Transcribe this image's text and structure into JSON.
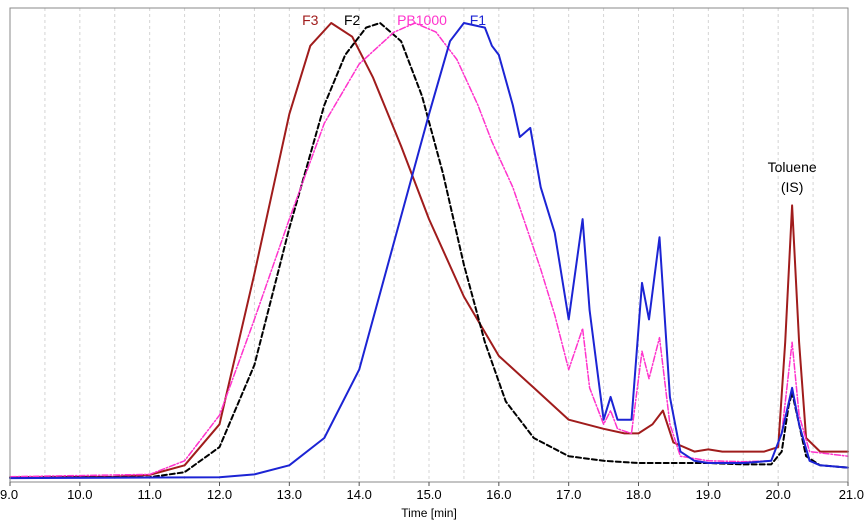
{
  "chart_data": {
    "type": "line",
    "xlabel": "Time [min]",
    "ylabel": "",
    "xlim": [
      9.0,
      21.0
    ],
    "ylim": [
      0,
      100
    ],
    "x_ticks": [
      "9.0",
      "10.0",
      "11.0",
      "12.0",
      "13.0",
      "14.0",
      "15.0",
      "16.0",
      "17.0",
      "18.0",
      "19.0",
      "20.0",
      "21.0"
    ],
    "grid": "vertical dashed minor lines every 0.5 min",
    "series": [
      {
        "name": "F3",
        "color": "#a01c1c",
        "style": "solid",
        "points": [
          [
            9.0,
            0.4
          ],
          [
            10.5,
            0.5
          ],
          [
            11.0,
            0.9
          ],
          [
            11.5,
            3
          ],
          [
            12.0,
            12
          ],
          [
            12.5,
            45
          ],
          [
            13.0,
            80
          ],
          [
            13.3,
            95
          ],
          [
            13.6,
            100
          ],
          [
            13.9,
            97
          ],
          [
            14.2,
            88
          ],
          [
            14.6,
            73
          ],
          [
            15.0,
            57
          ],
          [
            15.5,
            40
          ],
          [
            16.0,
            27
          ],
          [
            16.5,
            20
          ],
          [
            17.0,
            13
          ],
          [
            17.5,
            11
          ],
          [
            17.8,
            10
          ],
          [
            18.0,
            10
          ],
          [
            18.2,
            12
          ],
          [
            18.35,
            15
          ],
          [
            18.5,
            8
          ],
          [
            18.8,
            6
          ],
          [
            19.0,
            6.5
          ],
          [
            19.2,
            6
          ],
          [
            19.8,
            6
          ],
          [
            20.0,
            7
          ],
          [
            20.1,
            30
          ],
          [
            20.2,
            60
          ],
          [
            20.3,
            30
          ],
          [
            20.4,
            9
          ],
          [
            20.6,
            6
          ],
          [
            21.0,
            6
          ]
        ]
      },
      {
        "name": "F2",
        "color": "#000000",
        "style": "dashed",
        "points": [
          [
            9.0,
            0.3
          ],
          [
            11.0,
            0.4
          ],
          [
            11.5,
            1.5
          ],
          [
            12.0,
            7
          ],
          [
            12.5,
            25
          ],
          [
            13.0,
            55
          ],
          [
            13.5,
            82
          ],
          [
            13.8,
            93
          ],
          [
            14.1,
            99
          ],
          [
            14.3,
            100
          ],
          [
            14.6,
            96
          ],
          [
            14.9,
            84
          ],
          [
            15.2,
            67
          ],
          [
            15.5,
            47
          ],
          [
            15.8,
            30
          ],
          [
            16.1,
            17
          ],
          [
            16.5,
            9
          ],
          [
            17.0,
            5
          ],
          [
            17.5,
            4
          ],
          [
            18.0,
            3.5
          ],
          [
            19.0,
            3.5
          ],
          [
            19.5,
            3.2
          ],
          [
            19.9,
            3.2
          ],
          [
            20.05,
            6
          ],
          [
            20.15,
            16
          ],
          [
            20.2,
            19
          ],
          [
            20.3,
            12
          ],
          [
            20.4,
            5
          ],
          [
            20.6,
            3
          ],
          [
            21.0,
            2.5
          ]
        ]
      },
      {
        "name": "PB1000",
        "color": "#ff33cc",
        "style": "dashdot",
        "points": [
          [
            9.0,
            0.5
          ],
          [
            11.0,
            1
          ],
          [
            11.5,
            4
          ],
          [
            12.0,
            14
          ],
          [
            12.5,
            35
          ],
          [
            13.0,
            57
          ],
          [
            13.5,
            78
          ],
          [
            14.0,
            91
          ],
          [
            14.5,
            98
          ],
          [
            14.8,
            100
          ],
          [
            15.1,
            98
          ],
          [
            15.4,
            92
          ],
          [
            15.7,
            82
          ],
          [
            15.9,
            74
          ],
          [
            16.2,
            64
          ],
          [
            16.4,
            55
          ],
          [
            16.6,
            46
          ],
          [
            16.8,
            36
          ],
          [
            17.0,
            24
          ],
          [
            17.2,
            33
          ],
          [
            17.3,
            20
          ],
          [
            17.5,
            12
          ],
          [
            17.6,
            15
          ],
          [
            17.7,
            11
          ],
          [
            17.9,
            10
          ],
          [
            18.05,
            28
          ],
          [
            18.15,
            22
          ],
          [
            18.3,
            31
          ],
          [
            18.45,
            12
          ],
          [
            18.6,
            5
          ],
          [
            19.0,
            4
          ],
          [
            19.5,
            3.8
          ],
          [
            19.9,
            4
          ],
          [
            20.05,
            10
          ],
          [
            20.2,
            30
          ],
          [
            20.3,
            14
          ],
          [
            20.45,
            6
          ],
          [
            21.0,
            5
          ]
        ]
      },
      {
        "name": "F1",
        "color": "#1c24d4",
        "style": "solid",
        "points": [
          [
            9.0,
            0.2
          ],
          [
            12.0,
            0.4
          ],
          [
            12.5,
            1
          ],
          [
            13.0,
            3
          ],
          [
            13.5,
            9
          ],
          [
            14.0,
            24
          ],
          [
            14.5,
            52
          ],
          [
            15.0,
            80
          ],
          [
            15.3,
            96
          ],
          [
            15.5,
            100
          ],
          [
            15.8,
            99
          ],
          [
            15.9,
            95
          ],
          [
            16.0,
            93
          ],
          [
            16.2,
            82
          ],
          [
            16.3,
            75
          ],
          [
            16.45,
            77
          ],
          [
            16.6,
            64
          ],
          [
            16.8,
            54
          ],
          [
            17.0,
            35
          ],
          [
            17.2,
            57
          ],
          [
            17.3,
            37
          ],
          [
            17.5,
            13
          ],
          [
            17.6,
            18
          ],
          [
            17.7,
            13
          ],
          [
            17.9,
            13
          ],
          [
            18.05,
            43
          ],
          [
            18.15,
            35
          ],
          [
            18.3,
            53
          ],
          [
            18.45,
            18
          ],
          [
            18.6,
            6
          ],
          [
            18.8,
            4
          ],
          [
            19.0,
            3.5
          ],
          [
            19.5,
            3.5
          ],
          [
            19.9,
            4
          ],
          [
            20.05,
            10
          ],
          [
            20.2,
            20
          ],
          [
            20.3,
            12
          ],
          [
            20.45,
            4
          ],
          [
            20.6,
            3
          ],
          [
            21.0,
            2.5
          ]
        ]
      }
    ],
    "labels": [
      {
        "text": "F3",
        "color": "#a01c1c",
        "x": 13.3
      },
      {
        "text": "F2",
        "color": "#000000",
        "x": 13.9
      },
      {
        "text": "PB1000",
        "color": "#ff33cc",
        "x": 14.9
      },
      {
        "text": "F1",
        "color": "#1c24d4",
        "x": 15.7
      }
    ],
    "annotation": {
      "line1": "Toluene",
      "line2": "(IS)",
      "x": 20.2
    }
  }
}
